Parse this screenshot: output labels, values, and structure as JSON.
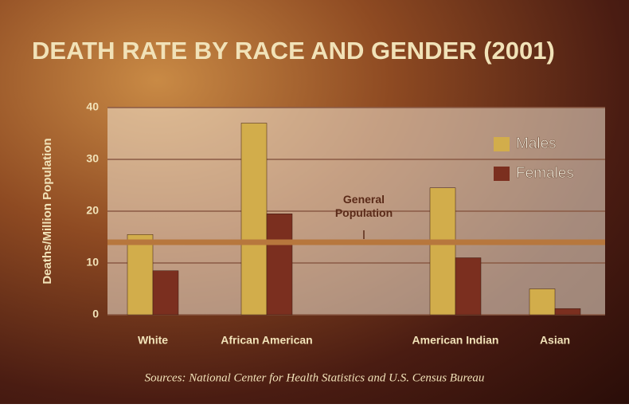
{
  "chart_data": {
    "type": "bar",
    "title": "DEATH RATE BY RACE AND GENDER (2001)",
    "y_label": "Deaths/Million Population",
    "categories": [
      "White",
      "African American",
      "American Indian",
      "Asian"
    ],
    "series": [
      {
        "name": "Males",
        "color": "#d2ad4b",
        "values": [
          15.5,
          37,
          24.5,
          5
        ]
      },
      {
        "name": "Females",
        "color": "#7b2f1f",
        "values": [
          8.5,
          19.5,
          11,
          1.2
        ]
      }
    ],
    "ylim": [
      0,
      40
    ],
    "yticks": [
      0,
      10,
      20,
      30,
      40
    ],
    "grid": true,
    "reference_line": {
      "value": 14,
      "label": "General Population",
      "color": "#b7773d"
    },
    "source": "Sources: National Center for Health Statistics and U.S. Census Bureau"
  }
}
